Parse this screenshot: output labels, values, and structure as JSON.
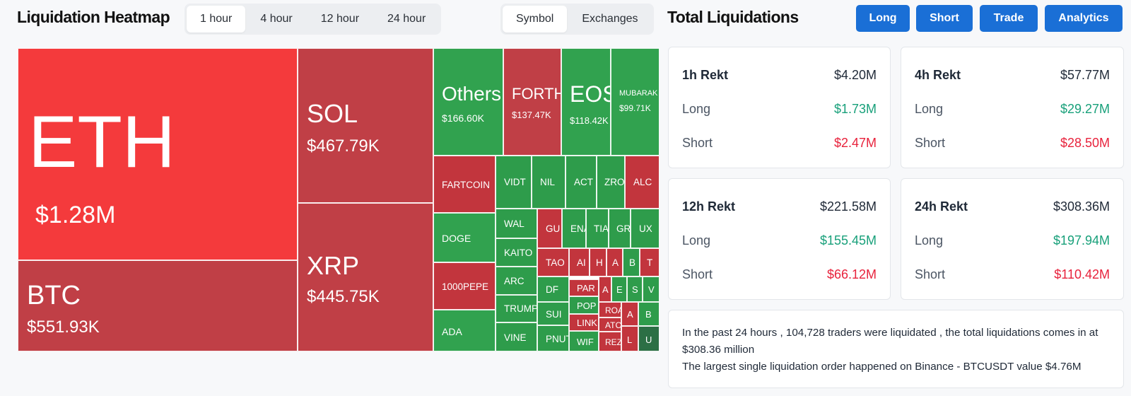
{
  "header": {
    "title": "Liquidation Heatmap",
    "time_tabs": [
      "1 hour",
      "4 hour",
      "12 hour",
      "24 hour"
    ],
    "active_time_tab": "1 hour",
    "view_tabs": [
      "Symbol",
      "Exchanges"
    ],
    "active_view_tab": "Symbol"
  },
  "total": {
    "title": "Total Liquidations",
    "actions": [
      "Long",
      "Short",
      "Trade",
      "Analytics"
    ]
  },
  "heatmap": {
    "cells": [
      {
        "symbol": "ETH",
        "value": "$1.28M"
      },
      {
        "symbol": "BTC",
        "value": "$551.93K"
      },
      {
        "symbol": "SOL",
        "value": "$467.79K"
      },
      {
        "symbol": "XRP",
        "value": "$445.75K"
      },
      {
        "symbol": "Others",
        "value": "$166.60K"
      },
      {
        "symbol": "FORTH",
        "value": "$137.47K"
      },
      {
        "symbol": "EOS",
        "value": "$118.42K"
      },
      {
        "symbol": "MUBARAK",
        "value": "$99.71K"
      },
      {
        "symbol": "FARTCOIN"
      },
      {
        "symbol": "DOGE"
      },
      {
        "symbol": "1000PEPE"
      },
      {
        "symbol": "ADA"
      },
      {
        "symbol": "VIDT"
      },
      {
        "symbol": "NIL"
      },
      {
        "symbol": "ACT"
      },
      {
        "symbol": "ZRO"
      },
      {
        "symbol": "ALC"
      },
      {
        "symbol": "WAL"
      },
      {
        "symbol": "KAITO"
      },
      {
        "symbol": "ARC"
      },
      {
        "symbol": "TRUMP"
      },
      {
        "symbol": "VINE"
      },
      {
        "symbol": "GU"
      },
      {
        "symbol": "ENA"
      },
      {
        "symbol": "TIA"
      },
      {
        "symbol": "GR"
      },
      {
        "symbol": "UX"
      },
      {
        "symbol": "TAO"
      },
      {
        "symbol": "AI"
      },
      {
        "symbol": "H"
      },
      {
        "symbol": "A"
      },
      {
        "symbol": "B"
      },
      {
        "symbol": "T"
      },
      {
        "symbol": "DF"
      },
      {
        "symbol": "PAR"
      },
      {
        "symbol": "A"
      },
      {
        "symbol": "E"
      },
      {
        "symbol": "S"
      },
      {
        "symbol": "V"
      },
      {
        "symbol": "SUI"
      },
      {
        "symbol": "POP"
      },
      {
        "symbol": "ROA"
      },
      {
        "symbol": "A"
      },
      {
        "symbol": "B"
      },
      {
        "symbol": "PNUT"
      },
      {
        "symbol": "LINK"
      },
      {
        "symbol": "ATC"
      },
      {
        "symbol": "L"
      },
      {
        "symbol": "U"
      },
      {
        "symbol": "WIF"
      },
      {
        "symbol": "REZ"
      }
    ]
  },
  "rekt": [
    {
      "label": "1h Rekt",
      "total": "$4.20M",
      "long_label": "Long",
      "long": "$1.73M",
      "short_label": "Short",
      "short": "$2.47M"
    },
    {
      "label": "4h Rekt",
      "total": "$57.77M",
      "long_label": "Long",
      "long": "$29.27M",
      "short_label": "Short",
      "short": "$28.50M"
    },
    {
      "label": "12h Rekt",
      "total": "$221.58M",
      "long_label": "Long",
      "long": "$155.45M",
      "short_label": "Short",
      "short": "$66.12M"
    },
    {
      "label": "24h Rekt",
      "total": "$308.36M",
      "long_label": "Long",
      "long": "$197.94M",
      "short_label": "Short",
      "short": "$110.42M"
    }
  ],
  "summary": {
    "line1": "In the past 24 hours , 104,728 traders were liquidated , the total liquidations comes in at $308.36 million",
    "line2": "The largest single liquidation order happened on Binance - BTCUSDT value $4.76M"
  }
}
